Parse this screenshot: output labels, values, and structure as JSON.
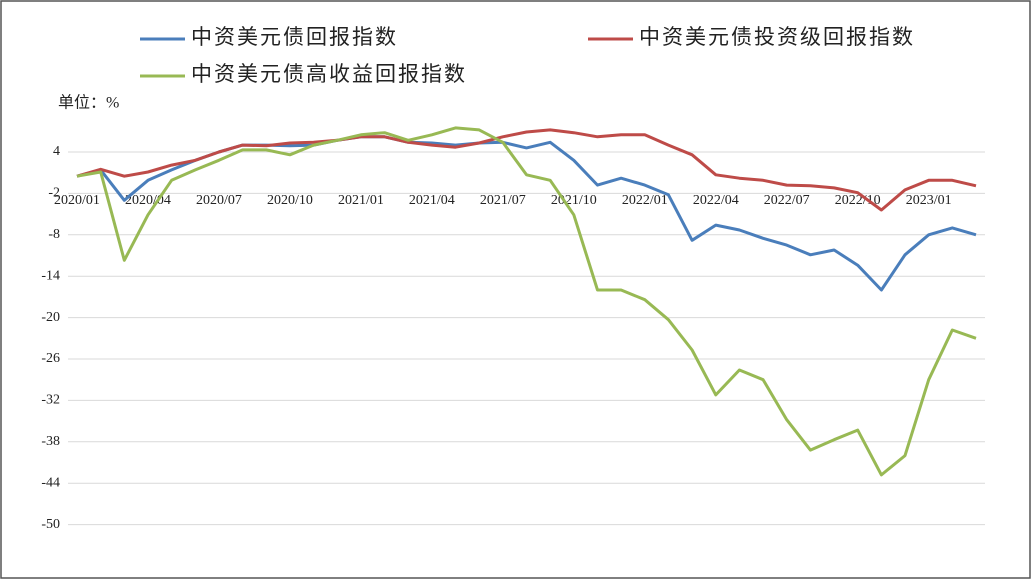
{
  "chart_data": {
    "type": "line",
    "unit_label": "单位：%",
    "categories": [
      "2020/01",
      null,
      null,
      "2020/04",
      null,
      null,
      "2020/07",
      null,
      null,
      "2020/10",
      null,
      null,
      "2021/01",
      null,
      null,
      "2021/04",
      null,
      null,
      "2021/07",
      null,
      null,
      "2021/10",
      null,
      null,
      "2022/01",
      null,
      null,
      "2022/04",
      null,
      null,
      "2022/07",
      null,
      null,
      "2022/10",
      null,
      null,
      "2023/01",
      null,
      null
    ],
    "series": [
      {
        "name": "中资美元债回报指数",
        "color": "#4a7ebb",
        "values": [
          0.5,
          1.4,
          -3,
          -0.1,
          1.4,
          2.8,
          4,
          5,
          5,
          4.9,
          5,
          5.7,
          6.2,
          6.2,
          5.4,
          5.3,
          5,
          5.3,
          5.4,
          4.6,
          5.4,
          2.8,
          -0.8,
          0.2,
          -0.8,
          -2.2,
          -8.8,
          -6.6,
          -7.3,
          -8.5,
          -9.5,
          -10.9,
          -10.2,
          -12.4,
          -16,
          -10.9,
          -8,
          -7,
          -8
        ]
      },
      {
        "name": "中资美元债投资级回报指数",
        "color": "#be4b48",
        "values": [
          0.5,
          1.5,
          0.5,
          1.1,
          2.1,
          2.8,
          4,
          5,
          4.9,
          5.3,
          5.4,
          5.7,
          6.2,
          6.2,
          5.4,
          5,
          4.7,
          5.3,
          6.2,
          6.9,
          7.2,
          6.8,
          6.2,
          6.5,
          6.5,
          5,
          3.6,
          0.7,
          0.2,
          -0.1,
          -0.8,
          -0.9,
          -1.2,
          -1.9,
          -4.4,
          -1.5,
          -0.1,
          -0.1,
          -0.9
        ]
      },
      {
        "name": "中资美元债高收益回报指数",
        "color": "#98b954",
        "values": [
          0.5,
          1.1,
          -11.7,
          -5.1,
          -0.1,
          1.4,
          2.8,
          4.3,
          4.3,
          3.6,
          5,
          5.7,
          6.5,
          6.8,
          5.7,
          6.5,
          7.5,
          7.2,
          5.4,
          0.7,
          -0.1,
          -5.1,
          -16,
          -16,
          -17.4,
          -20.3,
          -24.7,
          -31.2,
          -27.6,
          -29,
          -34.8,
          -39.2,
          -37.7,
          -36.3,
          -42.8,
          -40,
          -29,
          -21.8,
          -23
        ]
      }
    ],
    "ylim": [
      -50,
      10
    ],
    "yticks": [
      4,
      -2,
      -8,
      -14,
      -20,
      -26,
      -32,
      -38,
      -44,
      -50
    ],
    "grid": true
  }
}
